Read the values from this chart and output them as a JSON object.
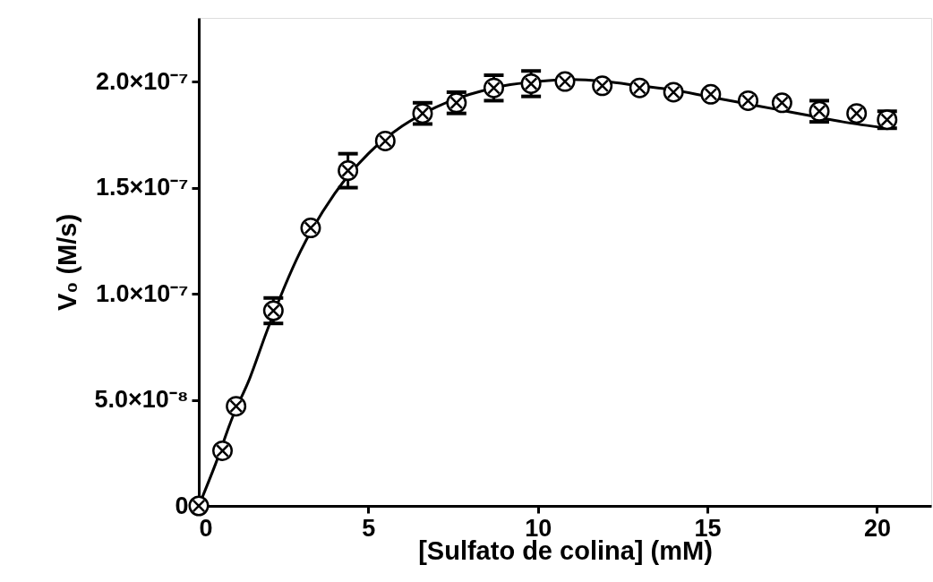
{
  "chart_data": {
    "type": "scatter",
    "xlabel": "[Sulfato de colina] (mM)",
    "ylabel": "V₀ (M/s)",
    "xlim": [
      0,
      21.6
    ],
    "xticks": [
      0,
      5,
      10,
      15,
      20
    ],
    "ylim": [
      0,
      2.3e-07
    ],
    "yticks": [
      {
        "value": 0,
        "label": "0"
      },
      {
        "value": 5e-08,
        "label": "5.0×10⁻⁸"
      },
      {
        "value": 1e-07,
        "label": "1.0×10⁻⁷"
      },
      {
        "value": 1.5e-07,
        "label": "1.5×10⁻⁷"
      },
      {
        "value": 2e-07,
        "label": "2.0×10⁻⁷"
      }
    ],
    "grid": false,
    "marker": "circle",
    "line_style": "solid",
    "series": [
      {
        "color": "#000000",
        "x": [
          0,
          0.7,
          1.1,
          2.2,
          3.3,
          4.4,
          5.5,
          6.6,
          7.6,
          8.7,
          9.8,
          10.8,
          11.9,
          13.0,
          14.0,
          15.1,
          16.2,
          17.2,
          18.3,
          19.4,
          20.3
        ],
        "values": [
          0,
          2.6e-08,
          4.7e-08,
          9.2e-08,
          1.31e-07,
          1.58e-07,
          1.72e-07,
          1.85e-07,
          1.9e-07,
          1.97e-07,
          1.99e-07,
          2e-07,
          1.98e-07,
          1.97e-07,
          1.95e-07,
          1.94e-07,
          1.91e-07,
          1.9e-07,
          1.86e-07,
          1.85e-07,
          1.82e-07
        ],
        "errors": [
          null,
          null,
          null,
          6e-09,
          null,
          8e-09,
          null,
          5e-09,
          5e-09,
          6e-09,
          6e-09,
          null,
          null,
          null,
          null,
          null,
          null,
          null,
          5e-09,
          null,
          4e-09
        ]
      },
      {
        "type": "line",
        "marker": "none",
        "color": "#000000",
        "x": [
          0,
          0.5,
          1,
          1.5,
          2,
          3,
          4,
          5,
          6,
          7,
          8,
          9,
          10,
          11,
          12,
          13,
          14,
          15,
          16,
          17,
          18,
          19,
          20.3
        ],
        "values": [
          0,
          2e-08,
          4.2e-08,
          6e-08,
          8.2e-08,
          1.2e-07,
          1.47e-07,
          1.66e-07,
          1.79e-07,
          1.88e-07,
          1.94e-07,
          1.98e-07,
          2e-07,
          2.01e-07,
          2e-07,
          1.98e-07,
          1.96e-07,
          1.93e-07,
          1.9e-07,
          1.87e-07,
          1.84e-07,
          1.81e-07,
          1.78e-07
        ]
      }
    ]
  }
}
